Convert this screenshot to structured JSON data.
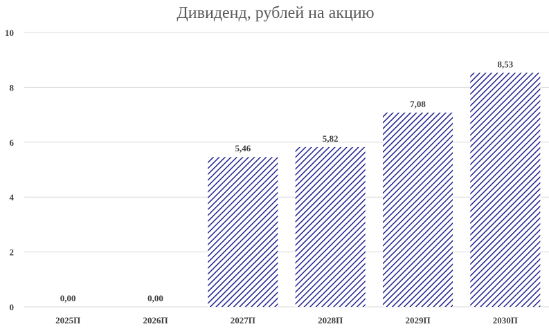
{
  "chart_data": {
    "type": "bar",
    "title": "Дивиденд, рублей на акцию",
    "xlabel": "",
    "ylabel": "",
    "categories": [
      "2025П",
      "2026П",
      "2027П",
      "2028П",
      "2029П",
      "2030П"
    ],
    "values": [
      0.0,
      0.0,
      5.46,
      5.82,
      7.08,
      8.53
    ],
    "value_labels": [
      "0,00",
      "0,00",
      "5,46",
      "5,82",
      "7,08",
      "8,53"
    ],
    "ylim": [
      0,
      10
    ],
    "yticks": [
      0,
      2,
      4,
      6,
      8,
      10
    ],
    "ytick_labels": [
      "0",
      "2",
      "4",
      "6",
      "8",
      "10"
    ],
    "grid": true,
    "legend": "none",
    "bar_fill": "diagonal-hatch",
    "bar_color": "#1f1f8f"
  }
}
